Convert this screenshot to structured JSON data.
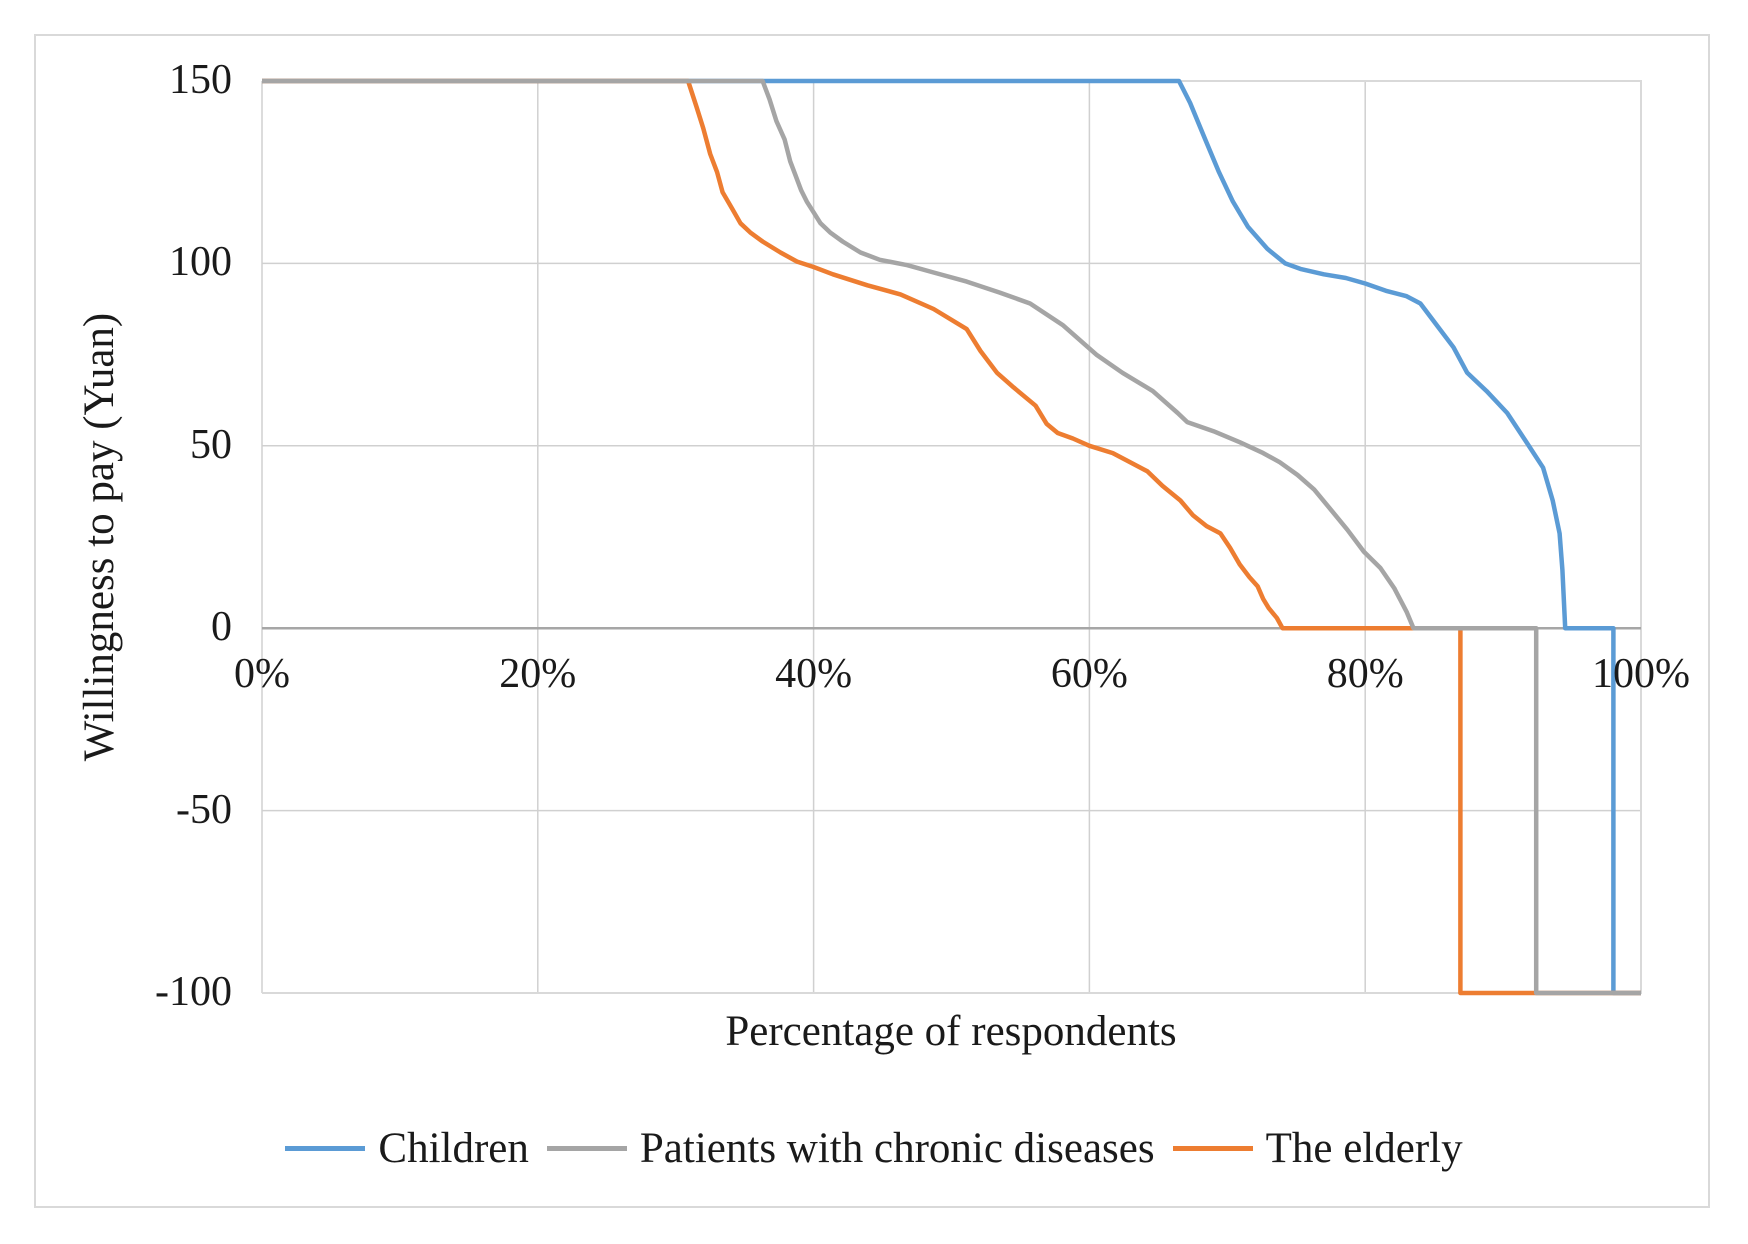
{
  "figure": {
    "background_color": "#ffffff",
    "border_color": "#d9d9d9"
  },
  "chart_data": {
    "type": "line",
    "title": "",
    "xlabel": "Percentage of respondents",
    "ylabel": "Willingness to pay (Yuan)",
    "xlim": [
      0,
      100
    ],
    "ylim": [
      -100,
      150
    ],
    "grid": true,
    "gridline_color": "#d0d0d0",
    "zero_axis_color": "#a6a6a6",
    "plot_border_color": "#d9d9d9",
    "legend_position": "bottom",
    "xticks": [
      {
        "value": 0,
        "label": "0%"
      },
      {
        "value": 20,
        "label": "20%"
      },
      {
        "value": 40,
        "label": "40%"
      },
      {
        "value": 60,
        "label": "60%"
      },
      {
        "value": 80,
        "label": "80%"
      },
      {
        "value": 100,
        "label": "100%"
      }
    ],
    "yticks": [
      {
        "value": 150,
        "label": "150"
      },
      {
        "value": 100,
        "label": "100"
      },
      {
        "value": 50,
        "label": "50"
      },
      {
        "value": 0,
        "label": "0"
      },
      {
        "value": -50,
        "label": "-50"
      },
      {
        "value": -100,
        "label": "-100"
      }
    ],
    "series": [
      {
        "name": "Children",
        "color": "#5b9bd5",
        "points": [
          [
            0,
            150
          ],
          [
            66.5,
            150
          ],
          [
            67.3,
            144
          ],
          [
            68.4,
            134
          ],
          [
            69.4,
            125
          ],
          [
            70.4,
            117
          ],
          [
            71.5,
            110
          ],
          [
            72.9,
            104
          ],
          [
            74.2,
            100
          ],
          [
            75.3,
            98.5
          ],
          [
            77,
            97
          ],
          [
            78.6,
            96
          ],
          [
            80,
            94.5
          ],
          [
            81.5,
            92.5
          ],
          [
            83,
            91
          ],
          [
            84,
            89
          ],
          [
            85.2,
            83
          ],
          [
            86.4,
            77
          ],
          [
            87.4,
            70
          ],
          [
            88.8,
            65
          ],
          [
            90.3,
            59
          ],
          [
            91.7,
            51
          ],
          [
            92.9,
            44
          ],
          [
            93.6,
            35
          ],
          [
            94.1,
            26
          ],
          [
            94.3,
            16
          ],
          [
            94.4,
            8
          ],
          [
            94.5,
            0
          ],
          [
            98,
            0
          ],
          [
            98,
            -100
          ],
          [
            100,
            -100
          ]
        ]
      },
      {
        "name": "Patients with chronic diseases",
        "color": "#a5a5a5",
        "points": [
          [
            0,
            150
          ],
          [
            36.3,
            150
          ],
          [
            36.8,
            145
          ],
          [
            37.3,
            139
          ],
          [
            37.9,
            134
          ],
          [
            38.3,
            128
          ],
          [
            38.7,
            124
          ],
          [
            39.1,
            120
          ],
          [
            39.5,
            117
          ],
          [
            40,
            114
          ],
          [
            40.5,
            111
          ],
          [
            41.2,
            108.5
          ],
          [
            42.1,
            106
          ],
          [
            43.4,
            103
          ],
          [
            44.8,
            101
          ],
          [
            46.8,
            99.5
          ],
          [
            48.7,
            97.5
          ],
          [
            51.1,
            95
          ],
          [
            53.5,
            92
          ],
          [
            55.7,
            89
          ],
          [
            58.1,
            83
          ],
          [
            60.5,
            75
          ],
          [
            62.4,
            70
          ],
          [
            64.6,
            65
          ],
          [
            65.8,
            61
          ],
          [
            66.4,
            59
          ],
          [
            67.1,
            56.5
          ],
          [
            69,
            54
          ],
          [
            70.9,
            51
          ],
          [
            72.6,
            48
          ],
          [
            73.8,
            45.5
          ],
          [
            75.1,
            42
          ],
          [
            76.3,
            38
          ],
          [
            77.4,
            33
          ],
          [
            78.7,
            27
          ],
          [
            79.9,
            21
          ],
          [
            81.1,
            16.5
          ],
          [
            82.1,
            11
          ],
          [
            83,
            4.5
          ],
          [
            83.5,
            0
          ],
          [
            92.4,
            0
          ],
          [
            92.4,
            -100
          ],
          [
            100,
            -100
          ]
        ]
      },
      {
        "name": "The elderly",
        "color": "#ed7d31",
        "points": [
          [
            0,
            150
          ],
          [
            30.9,
            150
          ],
          [
            31.5,
            143
          ],
          [
            32,
            137
          ],
          [
            32.5,
            130
          ],
          [
            33,
            125
          ],
          [
            33.4,
            119.5
          ],
          [
            34.1,
            115
          ],
          [
            34.7,
            111
          ],
          [
            35.4,
            108.5
          ],
          [
            36.3,
            106
          ],
          [
            37.6,
            103
          ],
          [
            38.8,
            100.5
          ],
          [
            40,
            99
          ],
          [
            41.4,
            97
          ],
          [
            43.9,
            94
          ],
          [
            46.3,
            91.5
          ],
          [
            48.7,
            87.5
          ],
          [
            51.1,
            82
          ],
          [
            52.1,
            76
          ],
          [
            53.3,
            70
          ],
          [
            54.5,
            66
          ],
          [
            56.1,
            61
          ],
          [
            56.9,
            56
          ],
          [
            57.7,
            53.5
          ],
          [
            58.8,
            52
          ],
          [
            60,
            50
          ],
          [
            61.7,
            48
          ],
          [
            62.7,
            46
          ],
          [
            64.2,
            43
          ],
          [
            65.3,
            39
          ],
          [
            66.6,
            35
          ],
          [
            67.5,
            31
          ],
          [
            68.5,
            28
          ],
          [
            69.5,
            26
          ],
          [
            70.2,
            22
          ],
          [
            70.9,
            17.5
          ],
          [
            71.6,
            14
          ],
          [
            72.2,
            11.5
          ],
          [
            72.6,
            8
          ],
          [
            73,
            5.5
          ],
          [
            73.6,
            2.8
          ],
          [
            74,
            0
          ],
          [
            86.9,
            0
          ],
          [
            86.9,
            -100
          ],
          [
            100,
            -100
          ]
        ]
      }
    ],
    "draw_order": [
      "Children",
      "The elderly",
      "Patients with chronic diseases"
    ],
    "line_width": 4.5
  }
}
